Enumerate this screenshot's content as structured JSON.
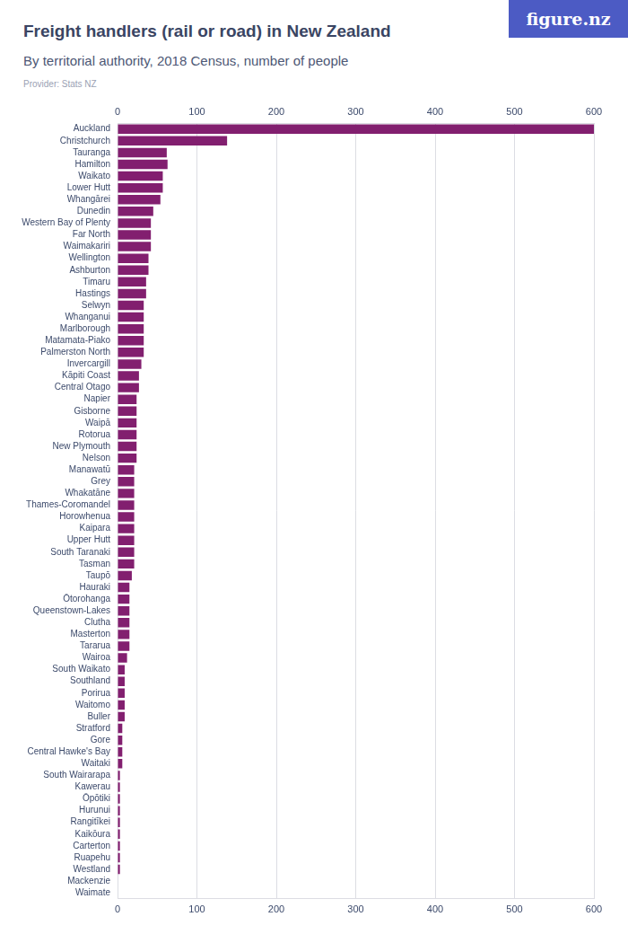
{
  "chart_data": {
    "type": "bar",
    "orientation": "horizontal",
    "title": "Freight handlers (rail or road) in New Zealand",
    "subtitle": "By territorial authority, 2018 Census, number of people",
    "source": "Provider: Stats NZ",
    "brand": "figure.nz",
    "categories": [
      "Auckland",
      "Christchurch",
      "Tauranga",
      "Hamilton",
      "Waikato",
      "Lower Hutt",
      "Whangārei",
      "Dunedin",
      "Western Bay of Plenty",
      "Far North",
      "Waimakariri",
      "Wellington",
      "Ashburton",
      "Timaru",
      "Hastings",
      "Selwyn",
      "Whanganui",
      "Marlborough",
      "Matamata-Piako",
      "Palmerston North",
      "Invercargill",
      "Kāpiti Coast",
      "Central Otago",
      "Napier",
      "Gisborne",
      "Waipā",
      "Rotorua",
      "New Plymouth",
      "Nelson",
      "Manawatū",
      "Grey",
      "Whakatāne",
      "Thames-Coromandel",
      "Horowhenua",
      "Kaipara",
      "Upper Hutt",
      "South Taranaki",
      "Tasman",
      "Taupō",
      "Hauraki",
      "Ōtorohanga",
      "Queenstown-Lakes",
      "Clutha",
      "Masterton",
      "Tararua",
      "Wairoa",
      "South Waikato",
      "Southland",
      "Porirua",
      "Waitomo",
      "Buller",
      "Stratford",
      "Gore",
      "Central Hawke's Bay",
      "Waitaki",
      "South Wairarapa",
      "Kawerau",
      "Ōpōtiki",
      "Hurunui",
      "Rangitīkei",
      "Kaikōura",
      "Carterton",
      "Ruapehu",
      "Westland",
      "Mackenzie",
      "Waimate"
    ],
    "values": [
      600,
      138,
      62,
      63,
      57,
      57,
      54,
      45,
      42,
      42,
      42,
      39,
      39,
      36,
      36,
      33,
      33,
      33,
      33,
      33,
      30,
      27,
      27,
      24,
      24,
      24,
      24,
      24,
      24,
      21,
      21,
      21,
      21,
      21,
      21,
      21,
      21,
      21,
      18,
      15,
      15,
      15,
      15,
      15,
      15,
      12,
      9,
      9,
      9,
      9,
      9,
      6,
      6,
      6,
      6,
      3,
      3,
      3,
      3,
      3,
      3,
      3,
      3,
      3,
      0,
      0
    ],
    "color": "#821f6f",
    "xlim": [
      0,
      600
    ],
    "xticks": [
      0,
      100,
      200,
      300,
      400,
      500,
      600
    ],
    "grid": true
  }
}
